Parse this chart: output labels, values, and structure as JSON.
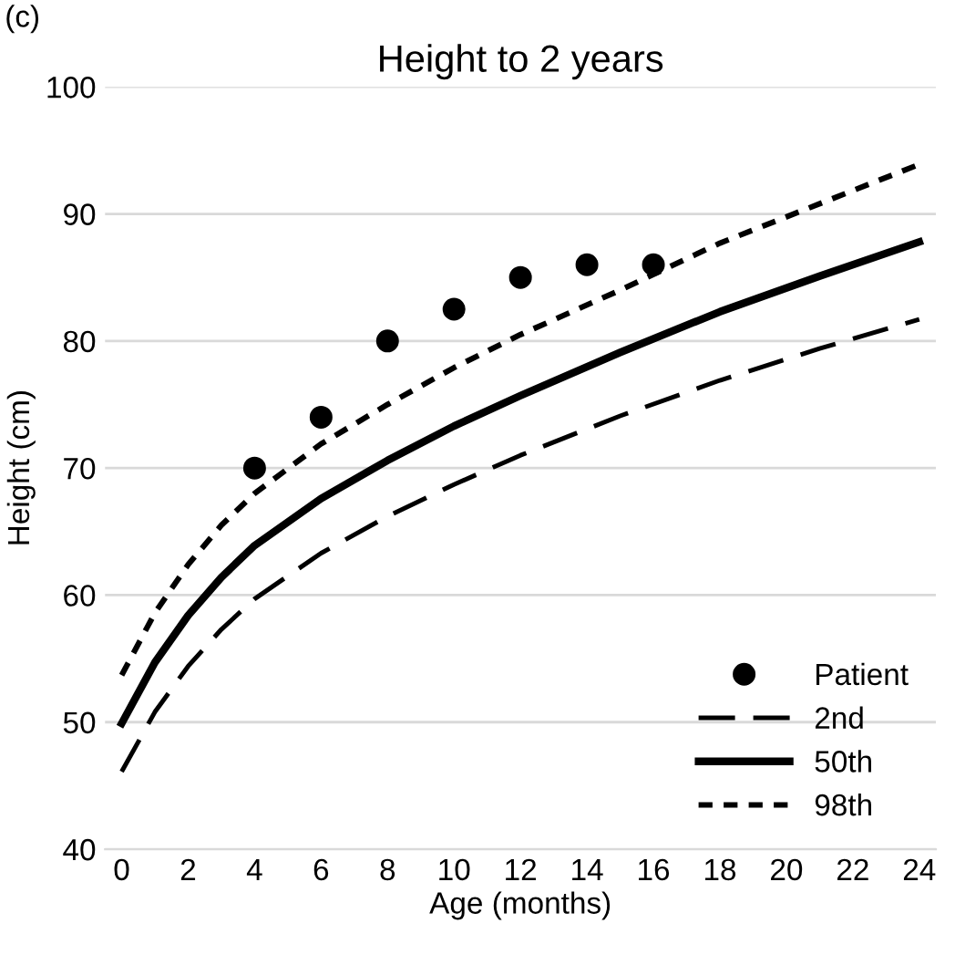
{
  "chart_data": {
    "type": "line",
    "title": "Height to 2 years",
    "xlabel": "Age (months)",
    "ylabel": "Height (cm)",
    "annotations": [
      "(c)"
    ],
    "xlim": [
      -0.5,
      24.5
    ],
    "xticks": [
      0,
      2,
      4,
      6,
      8,
      10,
      12,
      14,
      16,
      18,
      20,
      22,
      24
    ],
    "ylim": [
      40,
      100
    ],
    "yticks": [
      40,
      50,
      60,
      70,
      80,
      90,
      100
    ],
    "grid": "y",
    "legend": "bottom right",
    "series": [
      {
        "name": "Patient",
        "type": "scatter",
        "color": "#000000",
        "marker": "circle",
        "x": [
          4,
          6,
          8,
          10,
          12,
          14,
          16
        ],
        "values": [
          70,
          74,
          80,
          82.5,
          85,
          86,
          86
        ]
      },
      {
        "name": "2nd",
        "color": "#000000",
        "line_style": "dashed",
        "x": [
          0,
          1,
          2,
          3,
          4,
          6,
          8,
          10,
          12,
          15,
          18,
          21,
          24
        ],
        "values": [
          46.1,
          50.8,
          54.4,
          57.3,
          59.7,
          63.3,
          66.2,
          68.7,
          71.0,
          74.1,
          76.9,
          79.4,
          81.7
        ]
      },
      {
        "name": "50th",
        "color": "#000000",
        "line_style": "solid",
        "x": [
          0,
          1,
          2,
          3,
          4,
          6,
          8,
          10,
          12,
          15,
          18,
          21,
          24
        ],
        "values": [
          49.9,
          54.7,
          58.4,
          61.4,
          63.9,
          67.6,
          70.6,
          73.3,
          75.7,
          79.1,
          82.3,
          85.1,
          87.8
        ]
      },
      {
        "name": "98th",
        "color": "#000000",
        "line_style": "dotted",
        "x": [
          0,
          1,
          2,
          3,
          4,
          6,
          8,
          10,
          12,
          15,
          18,
          21,
          24
        ],
        "values": [
          53.7,
          58.6,
          62.4,
          65.5,
          68.0,
          71.9,
          75.0,
          77.9,
          80.5,
          84.0,
          87.7,
          90.8,
          93.9
        ]
      }
    ]
  }
}
